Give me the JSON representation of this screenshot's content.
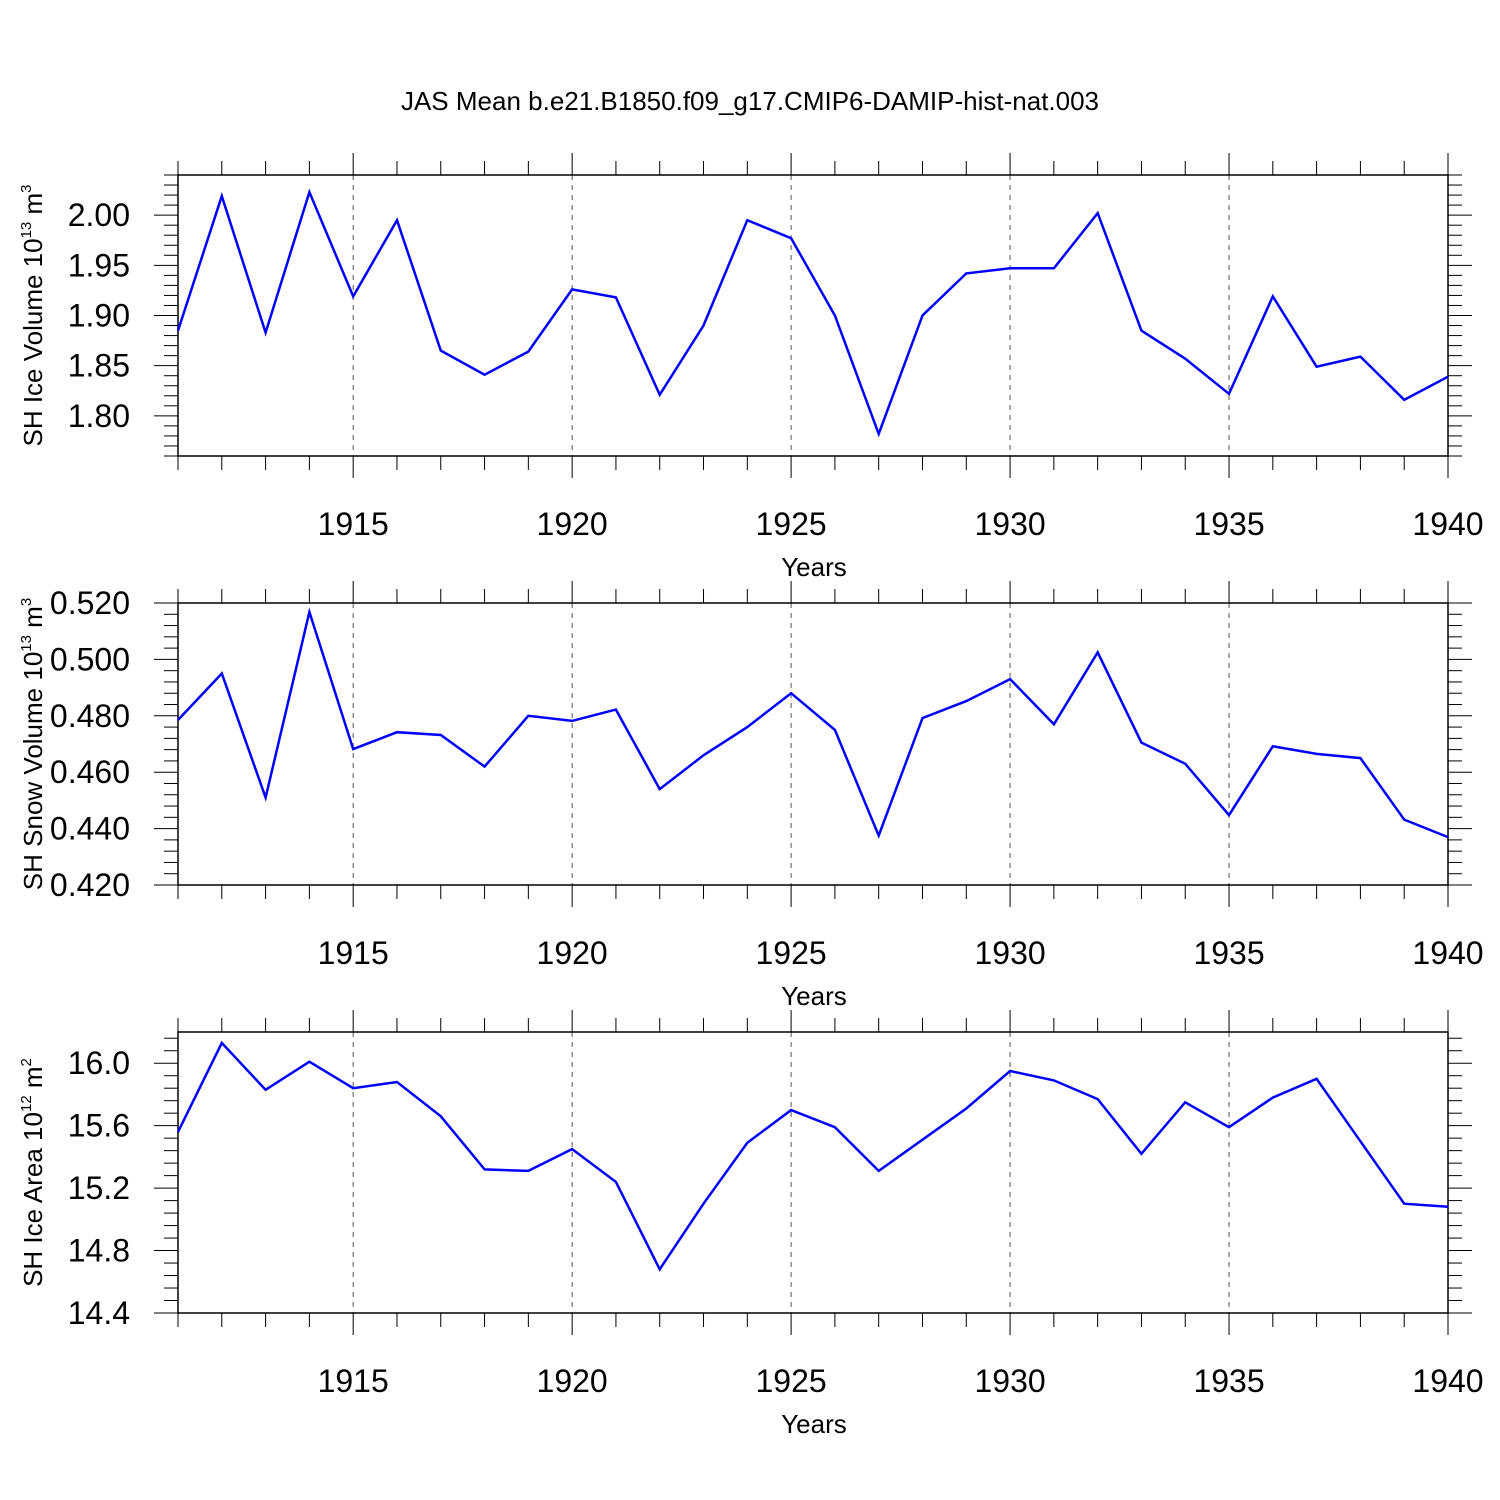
{
  "title": "JAS Mean b.e21.B1850.f09_g17.CMIP6-DAMIP-hist-nat.003",
  "colors": {
    "line": "#0000ff",
    "axis": "#000000",
    "grid": "#555555"
  },
  "chart_data": [
    {
      "type": "line",
      "xlabel": "Years",
      "ylabel_parts": {
        "text": "SH Ice Volume 10",
        "sup1": "13",
        "mid": " m",
        "sup2": "3"
      },
      "xlim": [
        1911,
        1940
      ],
      "ylim": [
        1.76,
        2.04
      ],
      "xticks": [
        1915,
        1920,
        1925,
        1930,
        1935,
        1940
      ],
      "yticks": [
        "1.80",
        "1.85",
        "1.90",
        "1.95",
        "2.00"
      ],
      "grid": "vertical-dashed",
      "x": [
        1911,
        1912,
        1913,
        1914,
        1915,
        1916,
        1917,
        1918,
        1919,
        1920,
        1921,
        1922,
        1923,
        1924,
        1925,
        1926,
        1927,
        1928,
        1929,
        1930,
        1931,
        1932,
        1933,
        1934,
        1935,
        1936,
        1937,
        1938,
        1939,
        1940
      ],
      "y": [
        1.885,
        2.019,
        1.883,
        2.023,
        1.919,
        1.995,
        1.865,
        1.841,
        1.864,
        1.926,
        1.918,
        1.821,
        1.89,
        1.995,
        1.977,
        1.9,
        1.782,
        1.9,
        1.942,
        1.947,
        1.947,
        2.002,
        1.885,
        1.857,
        1.822,
        1.919,
        1.849,
        1.859,
        1.816,
        1.839
      ]
    },
    {
      "type": "line",
      "xlabel": "Years",
      "ylabel_parts": {
        "text": "SH Snow Volume 10",
        "sup1": "13",
        "mid": " m",
        "sup2": "3"
      },
      "xlim": [
        1911,
        1940
      ],
      "ylim": [
        0.42,
        0.52
      ],
      "xticks": [
        1915,
        1920,
        1925,
        1930,
        1935,
        1940
      ],
      "yticks": [
        "0.420",
        "0.440",
        "0.460",
        "0.480",
        "0.500",
        "0.520"
      ],
      "grid": "vertical-dashed",
      "x": [
        1911,
        1912,
        1913,
        1914,
        1915,
        1916,
        1917,
        1918,
        1919,
        1920,
        1921,
        1922,
        1923,
        1924,
        1925,
        1926,
        1927,
        1928,
        1929,
        1930,
        1931,
        1932,
        1933,
        1934,
        1935,
        1936,
        1937,
        1938,
        1939,
        1940
      ],
      "y": [
        0.4785,
        0.495,
        0.451,
        0.5168,
        0.4682,
        0.4742,
        0.4732,
        0.462,
        0.48,
        0.4782,
        0.4822,
        0.454,
        0.466,
        0.476,
        0.488,
        0.475,
        0.4375,
        0.4792,
        0.4852,
        0.493,
        0.477,
        0.5025,
        0.4705,
        0.463,
        0.4448,
        0.4692,
        0.4665,
        0.465,
        0.4432,
        0.437
      ]
    },
    {
      "type": "line",
      "xlabel": "Years",
      "ylabel_parts": {
        "text": "SH Ice Area 10",
        "sup1": "12",
        "mid": " m",
        "sup2": "2"
      },
      "xlim": [
        1911,
        1940
      ],
      "ylim": [
        14.4,
        16.2
      ],
      "xticks": [
        1915,
        1920,
        1925,
        1930,
        1935,
        1940
      ],
      "yticks": [
        "14.4",
        "14.8",
        "15.2",
        "15.6",
        "16.0"
      ],
      "grid": "vertical-dashed",
      "x": [
        1911,
        1912,
        1913,
        1914,
        1915,
        1916,
        1917,
        1918,
        1919,
        1920,
        1921,
        1922,
        1923,
        1924,
        1925,
        1926,
        1927,
        1928,
        1929,
        1930,
        1931,
        1932,
        1933,
        1934,
        1935,
        1936,
        1937,
        1938,
        1939,
        1940
      ],
      "y": [
        15.56,
        16.13,
        15.83,
        16.01,
        15.84,
        15.88,
        15.66,
        15.32,
        15.31,
        15.45,
        15.24,
        14.68,
        15.1,
        15.49,
        15.7,
        15.59,
        15.31,
        15.51,
        15.71,
        15.95,
        15.89,
        15.77,
        15.42,
        15.75,
        15.59,
        15.78,
        15.9,
        15.5,
        15.1,
        15.08
      ]
    }
  ]
}
